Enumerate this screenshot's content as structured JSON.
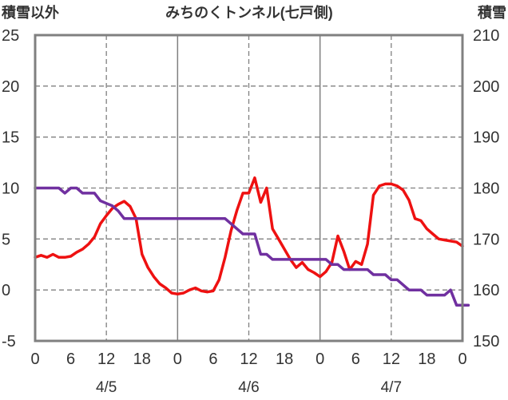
{
  "chart_data": {
    "type": "line",
    "title": "みちのくトンネル(七戸側)",
    "left_axis_label": "積雪以外",
    "right_axis_label": "積雪",
    "y_left": {
      "min": -5,
      "max": 25,
      "ticks": [
        -5,
        0,
        5,
        10,
        15,
        20,
        25
      ]
    },
    "y_right": {
      "min": 150,
      "max": 210,
      "ticks": [
        150,
        160,
        170,
        180,
        190,
        200,
        210
      ]
    },
    "x_hours": {
      "min": 0,
      "max": 72
    },
    "x_ticks": [
      {
        "h": 0,
        "label": "0"
      },
      {
        "h": 6,
        "label": "6"
      },
      {
        "h": 12,
        "label": "12"
      },
      {
        "h": 18,
        "label": "18"
      },
      {
        "h": 24,
        "label": "0"
      },
      {
        "h": 30,
        "label": "6"
      },
      {
        "h": 36,
        "label": "12"
      },
      {
        "h": 42,
        "label": "18"
      },
      {
        "h": 48,
        "label": "0"
      },
      {
        "h": 54,
        "label": "6"
      },
      {
        "h": 60,
        "label": "12"
      },
      {
        "h": 66,
        "label": "18"
      },
      {
        "h": 72,
        "label": "0"
      }
    ],
    "date_labels": [
      {
        "h": 12,
        "label": "4/5"
      },
      {
        "h": 36,
        "label": "4/6"
      },
      {
        "h": 60,
        "label": "4/7"
      }
    ],
    "grid": {
      "solid_hours": [
        24,
        48
      ],
      "dashed_hours": [
        12,
        36,
        60
      ],
      "dashed_y": [
        0,
        5,
        10,
        15,
        20
      ]
    },
    "colors": {
      "series_red": "#ee1111",
      "series_purple": "#7030a0",
      "frame": "#808080",
      "grid": "#808080"
    },
    "series": [
      {
        "axis": "left",
        "color": "#ee1111",
        "points": [
          [
            0,
            3.2
          ],
          [
            1,
            3.4
          ],
          [
            2,
            3.2
          ],
          [
            3,
            3.5
          ],
          [
            4,
            3.2
          ],
          [
            5,
            3.2
          ],
          [
            6,
            3.3
          ],
          [
            7,
            3.7
          ],
          [
            8,
            4.0
          ],
          [
            9,
            4.5
          ],
          [
            10,
            5.2
          ],
          [
            11,
            6.5
          ],
          [
            12,
            7.3
          ],
          [
            13,
            8.0
          ],
          [
            14,
            8.4
          ],
          [
            15,
            8.7
          ],
          [
            16,
            8.2
          ],
          [
            17,
            7.0
          ],
          [
            18,
            3.5
          ],
          [
            19,
            2.2
          ],
          [
            20,
            1.3
          ],
          [
            21,
            0.6
          ],
          [
            22,
            0.2
          ],
          [
            23,
            -0.3
          ],
          [
            24,
            -0.4
          ],
          [
            25,
            -0.3
          ],
          [
            26,
            0.0
          ],
          [
            27,
            0.2
          ],
          [
            28,
            -0.1
          ],
          [
            29,
            -0.2
          ],
          [
            30,
            -0.1
          ],
          [
            31,
            1.0
          ],
          [
            32,
            3.2
          ],
          [
            33,
            5.8
          ],
          [
            34,
            7.8
          ],
          [
            35,
            9.5
          ],
          [
            36,
            9.5
          ],
          [
            37,
            11.0
          ],
          [
            38,
            8.6
          ],
          [
            39,
            10.0
          ],
          [
            40,
            6.0
          ],
          [
            41,
            5.0
          ],
          [
            42,
            4.0
          ],
          [
            43,
            3.0
          ],
          [
            44,
            2.2
          ],
          [
            45,
            2.7
          ],
          [
            46,
            2.0
          ],
          [
            47,
            1.7
          ],
          [
            48,
            1.3
          ],
          [
            49,
            1.8
          ],
          [
            50,
            2.7
          ],
          [
            51,
            5.3
          ],
          [
            52,
            3.8
          ],
          [
            53,
            2.0
          ],
          [
            54,
            2.8
          ],
          [
            55,
            2.5
          ],
          [
            56,
            4.5
          ],
          [
            57,
            9.3
          ],
          [
            58,
            10.2
          ],
          [
            59,
            10.4
          ],
          [
            60,
            10.4
          ],
          [
            61,
            10.2
          ],
          [
            62,
            9.8
          ],
          [
            63,
            8.8
          ],
          [
            64,
            7.0
          ],
          [
            65,
            6.8
          ],
          [
            66,
            6.0
          ],
          [
            67,
            5.5
          ],
          [
            68,
            5.0
          ],
          [
            69,
            4.9
          ],
          [
            70,
            4.8
          ],
          [
            71,
            4.7
          ],
          [
            72,
            4.3
          ]
        ]
      },
      {
        "axis": "right",
        "color": "#7030a0",
        "points": [
          [
            0,
            180
          ],
          [
            4,
            180
          ],
          [
            5,
            179
          ],
          [
            6,
            180
          ],
          [
            7,
            180
          ],
          [
            8,
            179
          ],
          [
            10,
            179
          ],
          [
            11,
            177.5
          ],
          [
            12,
            177
          ],
          [
            13,
            176.5
          ],
          [
            14,
            175.5
          ],
          [
            15,
            174
          ],
          [
            32,
            174
          ],
          [
            33,
            173
          ],
          [
            34,
            172
          ],
          [
            35,
            171
          ],
          [
            37,
            171
          ],
          [
            38,
            167
          ],
          [
            39,
            167
          ],
          [
            40,
            166
          ],
          [
            49,
            166
          ],
          [
            50,
            165
          ],
          [
            51,
            165
          ],
          [
            52,
            164
          ],
          [
            56,
            164
          ],
          [
            57,
            163
          ],
          [
            59,
            163
          ],
          [
            60,
            162
          ],
          [
            61,
            162
          ],
          [
            62,
            161
          ],
          [
            63,
            160
          ],
          [
            65,
            160
          ],
          [
            66,
            159
          ],
          [
            69,
            159
          ],
          [
            70,
            160
          ],
          [
            71,
            157
          ],
          [
            73,
            157
          ]
        ]
      }
    ]
  }
}
